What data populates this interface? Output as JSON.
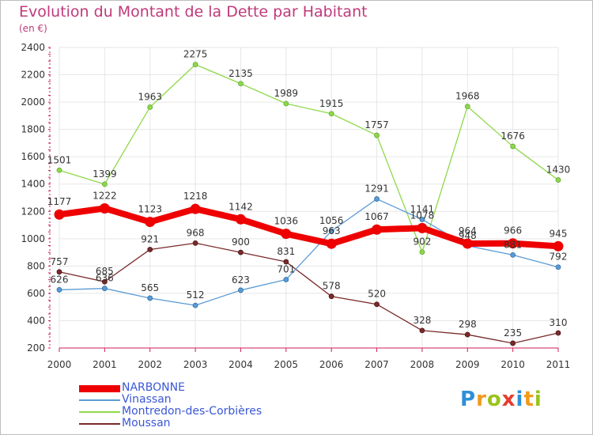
{
  "header": {
    "title": "Evolution du Montant de la Dette par Habitant",
    "subtitle": "(en €)"
  },
  "colors": {
    "title": "#c0397a",
    "axis": "#cc2255",
    "grid": "#e6e6e6",
    "legend_text": "#3a57d6"
  },
  "logo": {
    "text": "Proxiti",
    "letters": [
      {
        "ch": "P",
        "color": "#2f8fd8"
      },
      {
        "ch": "r",
        "color": "#f29a1c"
      },
      {
        "ch": "o",
        "color": "#9ac31c"
      },
      {
        "ch": "x",
        "color": "#e53c2e"
      },
      {
        "ch": "i",
        "color": "#2f8fd8"
      },
      {
        "ch": "t",
        "color": "#f29a1c"
      },
      {
        "ch": "i",
        "color": "#9ac31c"
      }
    ]
  },
  "chart_data": {
    "type": "line",
    "title": "Evolution du Montant de la Dette par Habitant",
    "subtitle": "(en €)",
    "x": [
      "2000",
      "2001",
      "2002",
      "2003",
      "2004",
      "2005",
      "2006",
      "2007",
      "2008",
      "2009",
      "2010",
      "2011"
    ],
    "ylim": [
      200,
      2400
    ],
    "yticks": [
      200,
      400,
      600,
      800,
      1000,
      1200,
      1400,
      1600,
      1800,
      2000,
      2200,
      2400
    ],
    "grid": true,
    "legend_position": "bottom-left",
    "series": [
      {
        "name": "Montredon-des-Corbières",
        "color": "#8fd84a",
        "point_color": "#8fd84a",
        "point_outline": "#5fa830",
        "thickness": "thin",
        "values": [
          1501,
          1399,
          1963,
          2275,
          2135,
          1989,
          1915,
          1757,
          902,
          1968,
          1676,
          1430
        ]
      },
      {
        "name": "Moussan",
        "color": "#7a2a2a",
        "point_color": "#7a2a2a",
        "point_outline": "#4a1414",
        "thickness": "thin",
        "values": [
          757,
          685,
          921,
          968,
          900,
          831,
          578,
          520,
          328,
          298,
          235,
          310
        ]
      },
      {
        "name": "Vinassan",
        "color": "#5b9bd5",
        "point_color": "#5b9bd5",
        "point_outline": "#2f6fa8",
        "thickness": "thin",
        "values": [
          626,
          636,
          565,
          512,
          623,
          701,
          1056,
          1291,
          1141,
          948,
          881,
          792
        ]
      },
      {
        "name": "NARBONNE",
        "color": "#ee0000",
        "point_color": "#ee0000",
        "point_outline": "#ee0000",
        "thickness": "thick",
        "values": [
          1177,
          1222,
          1123,
          1218,
          1142,
          1036,
          963,
          1067,
          1078,
          964,
          966,
          945
        ]
      }
    ],
    "legend_order": [
      "NARBONNE",
      "Vinassan",
      "Montredon-des-Corbières",
      "Moussan"
    ]
  }
}
